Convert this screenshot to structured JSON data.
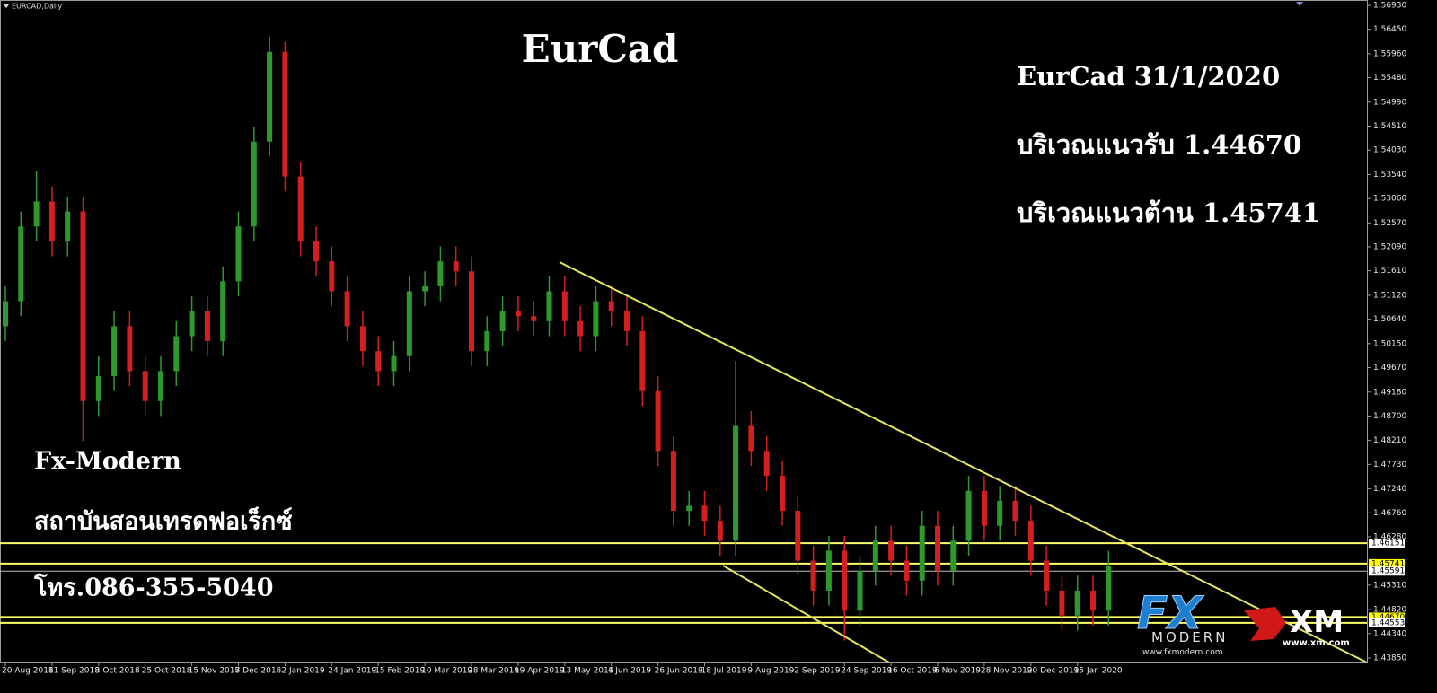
{
  "chart_data": {
    "type": "candlestick",
    "symbol": "EURCAD,Daily",
    "title": "EurCad",
    "annotations": [
      "EurCad 31/1/2020",
      "บริเวณแนวรับ 1.44670",
      "บริเวณแนวต้าน 1.45741"
    ],
    "branding": [
      "Fx-Modern",
      "สถาบันสอนเทรดฟอเร็กซ์",
      "โทร.086-355-5040"
    ],
    "logos": [
      "FX",
      "MODERN",
      "www.fxmodern.com",
      "XM",
      "www.xm.com"
    ],
    "categories": [
      "20 Aug 2018",
      null,
      null,
      "11 Sep 2018",
      null,
      null,
      "3 Oct 2018",
      null,
      null,
      "25 Oct 2018",
      null,
      null,
      "15 Nov 2018",
      null,
      null,
      "7 Dec 2018",
      null,
      null,
      "2 Jan 2019",
      null,
      null,
      "24 Jan 2019",
      null,
      null,
      "15 Feb 2019",
      null,
      null,
      "10 Mar 2019",
      null,
      null,
      "28 Mar 2019",
      null,
      null,
      "19 Apr 2019",
      null,
      null,
      "13 May 2019",
      null,
      null,
      "4 Jun 2019",
      null,
      null,
      "26 Jun 2019",
      null,
      null,
      "18 Jul 2019",
      null,
      null,
      "9 Aug 2019",
      null,
      null,
      "2 Sep 2019",
      null,
      null,
      "24 Sep 2019",
      null,
      null,
      "16 Oct 2019",
      null,
      null,
      "6 Nov 2019",
      null,
      null,
      "28 Nov 2019",
      null,
      null,
      "20 Dec 2019",
      null,
      null,
      "15 Jan 2020",
      null,
      null
    ],
    "open": [
      1.505,
      1.51,
      1.525,
      1.53,
      1.522,
      1.528,
      1.49,
      1.495,
      1.505,
      1.496,
      1.49,
      1.496,
      1.503,
      1.508,
      1.502,
      1.514,
      1.525,
      1.542,
      1.56,
      1.535,
      1.522,
      1.518,
      1.512,
      1.505,
      1.5,
      1.496,
      1.499,
      1.512,
      1.513,
      1.518,
      1.516,
      1.5,
      1.504,
      1.508,
      1.507,
      1.506,
      1.512,
      1.506,
      1.503,
      1.51,
      1.508,
      1.504,
      1.492,
      1.48,
      1.468,
      1.469,
      1.466,
      1.462,
      1.485,
      1.48,
      1.475,
      1.468,
      1.458,
      1.452,
      1.46,
      1.448,
      1.456,
      1.462,
      1.458,
      1.454,
      1.465,
      1.456,
      1.462,
      1.472,
      1.465,
      1.47,
      1.466,
      1.458,
      1.452,
      1.447,
      1.452,
      1.448
    ],
    "high": [
      1.513,
      1.528,
      1.536,
      1.533,
      1.531,
      1.531,
      1.499,
      1.508,
      1.508,
      1.499,
      1.499,
      1.506,
      1.511,
      1.511,
      1.517,
      1.528,
      1.545,
      1.563,
      1.562,
      1.538,
      1.525,
      1.521,
      1.515,
      1.508,
      1.503,
      1.502,
      1.515,
      1.516,
      1.521,
      1.521,
      1.519,
      1.507,
      1.511,
      1.511,
      1.51,
      1.515,
      1.515,
      1.509,
      1.513,
      1.513,
      1.511,
      1.507,
      1.495,
      1.483,
      1.472,
      1.472,
      1.469,
      1.498,
      1.488,
      1.483,
      1.478,
      1.471,
      1.461,
      1.463,
      1.463,
      1.459,
      1.465,
      1.465,
      1.461,
      1.468,
      1.468,
      1.465,
      1.475,
      1.475,
      1.473,
      1.473,
      1.469,
      1.461,
      1.455,
      1.455,
      1.455,
      1.46
    ],
    "low": [
      1.502,
      1.507,
      1.522,
      1.519,
      1.519,
      1.482,
      1.487,
      1.492,
      1.493,
      1.487,
      1.487,
      1.493,
      1.5,
      1.499,
      1.499,
      1.511,
      1.522,
      1.539,
      1.532,
      1.519,
      1.515,
      1.509,
      1.502,
      1.497,
      1.493,
      1.493,
      1.496,
      1.509,
      1.51,
      1.513,
      1.497,
      1.497,
      1.501,
      1.504,
      1.503,
      1.503,
      1.503,
      1.5,
      1.5,
      1.505,
      1.501,
      1.489,
      1.477,
      1.465,
      1.465,
      1.463,
      1.459,
      1.459,
      1.477,
      1.472,
      1.465,
      1.455,
      1.449,
      1.449,
      1.442,
      1.445,
      1.453,
      1.455,
      1.451,
      1.451,
      1.453,
      1.453,
      1.459,
      1.462,
      1.462,
      1.463,
      1.455,
      1.449,
      1.444,
      1.444,
      1.445,
      1.445
    ],
    "close": [
      1.51,
      1.525,
      1.53,
      1.522,
      1.528,
      1.49,
      1.495,
      1.505,
      1.496,
      1.49,
      1.496,
      1.503,
      1.508,
      1.502,
      1.514,
      1.525,
      1.542,
      1.56,
      1.535,
      1.522,
      1.518,
      1.512,
      1.505,
      1.5,
      1.496,
      1.499,
      1.512,
      1.513,
      1.518,
      1.516,
      1.5,
      1.504,
      1.508,
      1.507,
      1.506,
      1.512,
      1.506,
      1.503,
      1.51,
      1.508,
      1.504,
      1.492,
      1.48,
      1.468,
      1.469,
      1.466,
      1.462,
      1.485,
      1.48,
      1.475,
      1.468,
      1.458,
      1.452,
      1.46,
      1.448,
      1.456,
      1.462,
      1.458,
      1.454,
      1.465,
      1.456,
      1.462,
      1.472,
      1.465,
      1.47,
      1.466,
      1.458,
      1.452,
      1.447,
      1.452,
      1.448,
      1.457
    ],
    "up_color": "#2e9a2e",
    "down_color": "#d41f1f",
    "ylim": [
      1.4385,
      1.5693
    ],
    "yticks": [
      {
        "value": 1.5693,
        "label": "1.56930"
      },
      {
        "value": 1.5645,
        "label": "1.56450"
      },
      {
        "value": 1.5596,
        "label": "1.55960"
      },
      {
        "value": 1.5548,
        "label": "1.55480"
      },
      {
        "value": 1.5499,
        "label": "1.54990"
      },
      {
        "value": 1.5451,
        "label": "1.54510"
      },
      {
        "value": 1.5403,
        "label": "1.54030"
      },
      {
        "value": 1.5354,
        "label": "1.53540"
      },
      {
        "value": 1.5306,
        "label": "1.53060"
      },
      {
        "value": 1.5257,
        "label": "1.52570"
      },
      {
        "value": 1.5209,
        "label": "1.52090"
      },
      {
        "value": 1.5161,
        "label": "1.51610"
      },
      {
        "value": 1.5112,
        "label": "1.51120"
      },
      {
        "value": 1.5064,
        "label": "1.50640"
      },
      {
        "value": 1.5015,
        "label": "1.50150"
      },
      {
        "value": 1.4967,
        "label": "1.49670"
      },
      {
        "value": 1.4918,
        "label": "1.49180"
      },
      {
        "value": 1.487,
        "label": "1.48700"
      },
      {
        "value": 1.4821,
        "label": "1.48210"
      },
      {
        "value": 1.4773,
        "label": "1.47730"
      },
      {
        "value": 1.4724,
        "label": "1.47240"
      },
      {
        "value": 1.4676,
        "label": "1.46760"
      },
      {
        "value": 1.4628,
        "label": "1.46280"
      },
      {
        "value": 1.4531,
        "label": "1.45310"
      },
      {
        "value": 1.4482,
        "label": "1.44820"
      },
      {
        "value": 1.4434,
        "label": "1.44340"
      },
      {
        "value": 1.4385,
        "label": "1.43850"
      }
    ],
    "levels": [
      {
        "value": 1.46151,
        "label": "1.46151",
        "line_color": "#ffff66",
        "label_color": "#ffffff"
      },
      {
        "value": 1.45741,
        "label": "1.45741",
        "line_color": "#ffff66",
        "label_color": "#ffff00"
      },
      {
        "value": 1.45591,
        "label": "1.45591",
        "line_color": "#bdbdbd",
        "label_color": "#ffffff"
      },
      {
        "value": 1.4467,
        "label": "1.44670",
        "line_color": "#ffff66",
        "label_color": "#ffff00"
      },
      {
        "value": 1.44553,
        "label": "1.44553",
        "line_color": "#ffff66",
        "label_color": "#ffffff"
      }
    ]
  }
}
